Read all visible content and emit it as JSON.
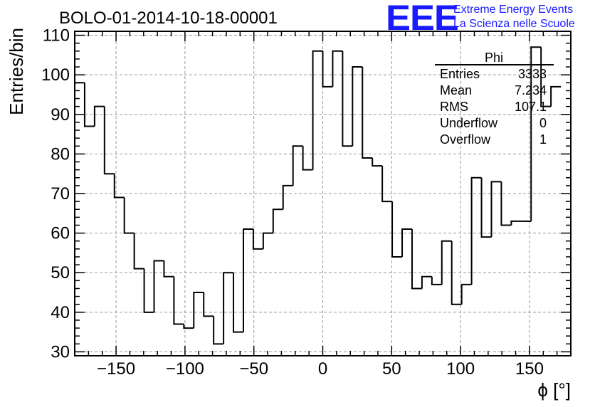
{
  "chart_data": {
    "type": "histogram",
    "title": "BOLO-01-2014-10-18-00001",
    "xlabel": "ϕ [°]",
    "ylabel": "Entries/bin",
    "xlim": [
      -180,
      180
    ],
    "ylim": [
      29,
      111
    ],
    "grid": true,
    "bin_edges_start": -180,
    "bin_width": 7.2,
    "values": [
      98,
      87,
      92,
      75,
      69,
      60,
      51,
      40,
      53,
      49,
      37,
      36,
      45,
      39,
      32,
      50,
      35,
      61,
      56,
      60,
      66,
      72,
      82,
      76,
      106,
      97,
      106,
      82,
      102,
      79,
      77,
      68,
      54,
      61,
      46,
      49,
      47,
      58,
      42,
      47,
      74,
      59,
      73,
      62,
      63,
      63,
      107,
      92,
      97
    ],
    "x_ticks": [
      -150,
      -100,
      -50,
      0,
      50,
      100,
      150
    ],
    "x_tick_labels": [
      "−150",
      "−100",
      "−50",
      "0",
      "50",
      "100",
      "150"
    ],
    "y_ticks": [
      30,
      40,
      50,
      60,
      70,
      80,
      90,
      100,
      110
    ],
    "y_tick_labels": [
      "30",
      "40",
      "50",
      "60",
      "70",
      "80",
      "90",
      "100",
      "110"
    ],
    "stats": {
      "name": "Phi",
      "rows": [
        {
          "label": "Entries",
          "value": "3333"
        },
        {
          "label": "Mean",
          "value": "7.234"
        },
        {
          "label": "RMS",
          "value": "107.1"
        },
        {
          "label": "Underflow",
          "value": "0"
        },
        {
          "label": "Overflow",
          "value": "1"
        }
      ]
    }
  },
  "logo": {
    "mark": "EEE",
    "line1": "Extreme Energy Events",
    "line2": "La Scienza nelle Scuole"
  },
  "colors": {
    "line": "#000000",
    "grid": "#999999",
    "logo": "#1a1aff"
  }
}
